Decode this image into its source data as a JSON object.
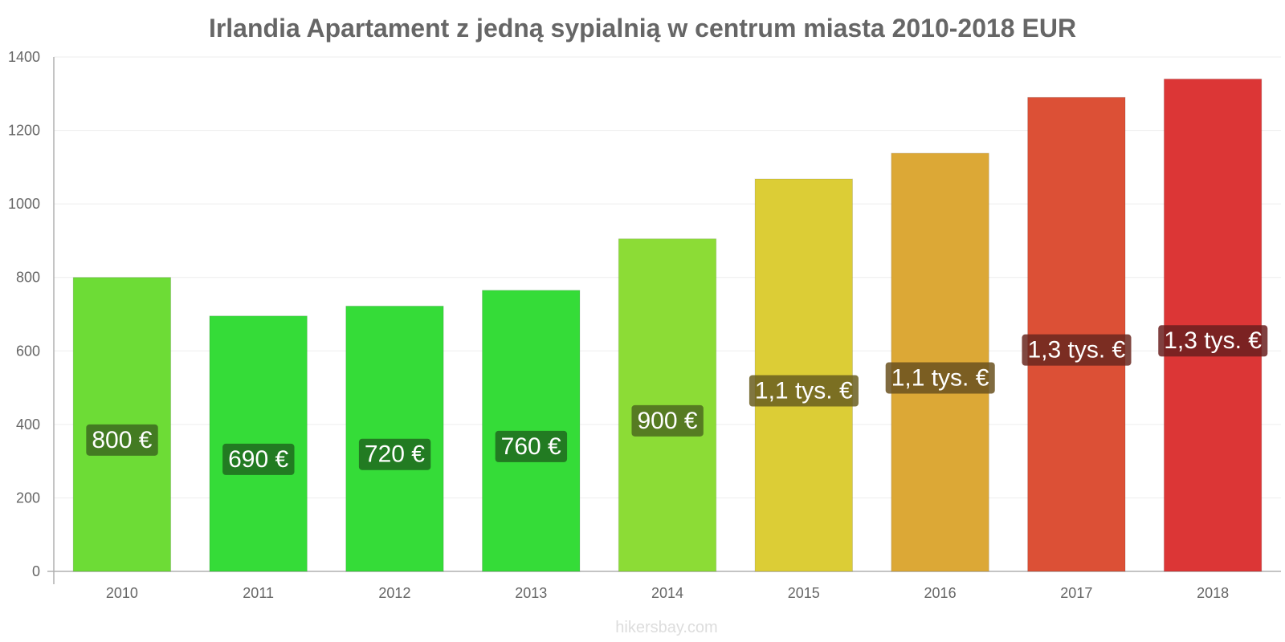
{
  "chart_data": {
    "type": "bar",
    "title": "Irlandia Apartament z jedną sypialnią w centrum miasta 2010-2018 EUR",
    "categories": [
      "2010",
      "2011",
      "2012",
      "2013",
      "2014",
      "2015",
      "2016",
      "2017",
      "2018"
    ],
    "values": [
      800,
      695,
      722,
      765,
      905,
      1068,
      1138,
      1290,
      1340
    ],
    "data_labels": [
      "800 €",
      "690 €",
      "720 €",
      "760 €",
      "900 €",
      "1,1 tys. €",
      "1,1 tys. €",
      "1,3 tys. €",
      "1,3 tys. €"
    ],
    "colors": [
      "#6ddc36",
      "#35dc38",
      "#35dc38",
      "#35dc38",
      "#8cdc36",
      "#dccd36",
      "#dca836",
      "#dc5036",
      "#dc3636"
    ],
    "label_backgrounds": [
      "#3c6a1e",
      "#1f6a1e",
      "#1f6a1e",
      "#1f6a1e",
      "#4c6a1e",
      "#6a5e1e",
      "#6a511e",
      "#6a271e",
      "#6a1e1e"
    ],
    "y_ticks": [
      0,
      200,
      400,
      600,
      800,
      1000,
      1200,
      1400
    ],
    "ylim": [
      0,
      1400
    ],
    "xlabel": "",
    "ylabel": "",
    "grid": true,
    "legend": "none"
  },
  "watermark": "hikersbay.com"
}
